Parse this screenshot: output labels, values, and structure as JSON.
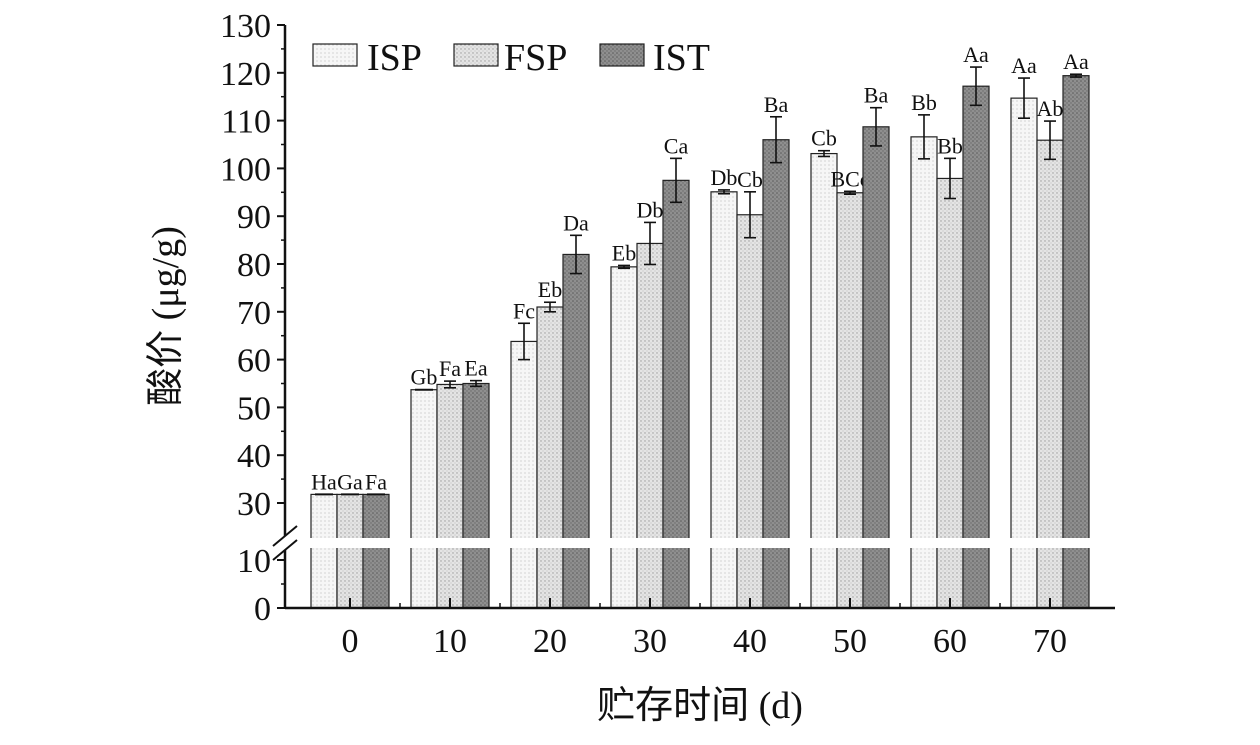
{
  "chart_data": {
    "type": "bar",
    "title": "",
    "xlabel": "贮存时间 (d)",
    "ylabel": "酸价 (μg/g)",
    "categories": [
      "0",
      "10",
      "20",
      "30",
      "40",
      "50",
      "60",
      "70"
    ],
    "ylim": [
      0,
      130
    ],
    "y_axis_break": [
      12,
      28
    ],
    "yticks_lower": [
      0,
      10
    ],
    "yticks_upper": [
      30,
      40,
      50,
      60,
      70,
      80,
      90,
      100,
      110,
      120,
      130
    ],
    "grid": false,
    "legend_position": "top-left",
    "series": [
      {
        "name": "ISP",
        "color": "#f3f3f3",
        "values": [
          31.8,
          53.7,
          63.8,
          79.4,
          95.1,
          103.1,
          106.6,
          114.7
        ],
        "errors": [
          0,
          0,
          3.8,
          0.3,
          0.4,
          0.6,
          4.6,
          4.2
        ],
        "labels": [
          "Ha",
          "Gb",
          "Fc",
          "Eb",
          "Db",
          "Cb",
          "Bb",
          "Aa"
        ]
      },
      {
        "name": "FSP",
        "color": "#dedede",
        "values": [
          31.8,
          54.8,
          71.0,
          84.3,
          90.3,
          94.9,
          97.9,
          105.9
        ],
        "errors": [
          0,
          0.7,
          1.0,
          4.4,
          4.8,
          0.3,
          4.2,
          4.0
        ],
        "labels": [
          "Ga",
          "Fa",
          "Eb",
          "Db",
          "Cb",
          "BCc",
          "Bb",
          "Ab"
        ]
      },
      {
        "name": "IST",
        "color": "#8c8c8c",
        "values": [
          31.8,
          55.0,
          82.0,
          97.5,
          106.0,
          108.7,
          117.2,
          119.4
        ],
        "errors": [
          0,
          0.6,
          4.0,
          4.6,
          4.8,
          4.0,
          4.0,
          0.3
        ],
        "labels": [
          "Fa",
          "Ea",
          "Da",
          "Ca",
          "Ba",
          "Ba",
          "Aa",
          "Aa"
        ]
      }
    ]
  }
}
